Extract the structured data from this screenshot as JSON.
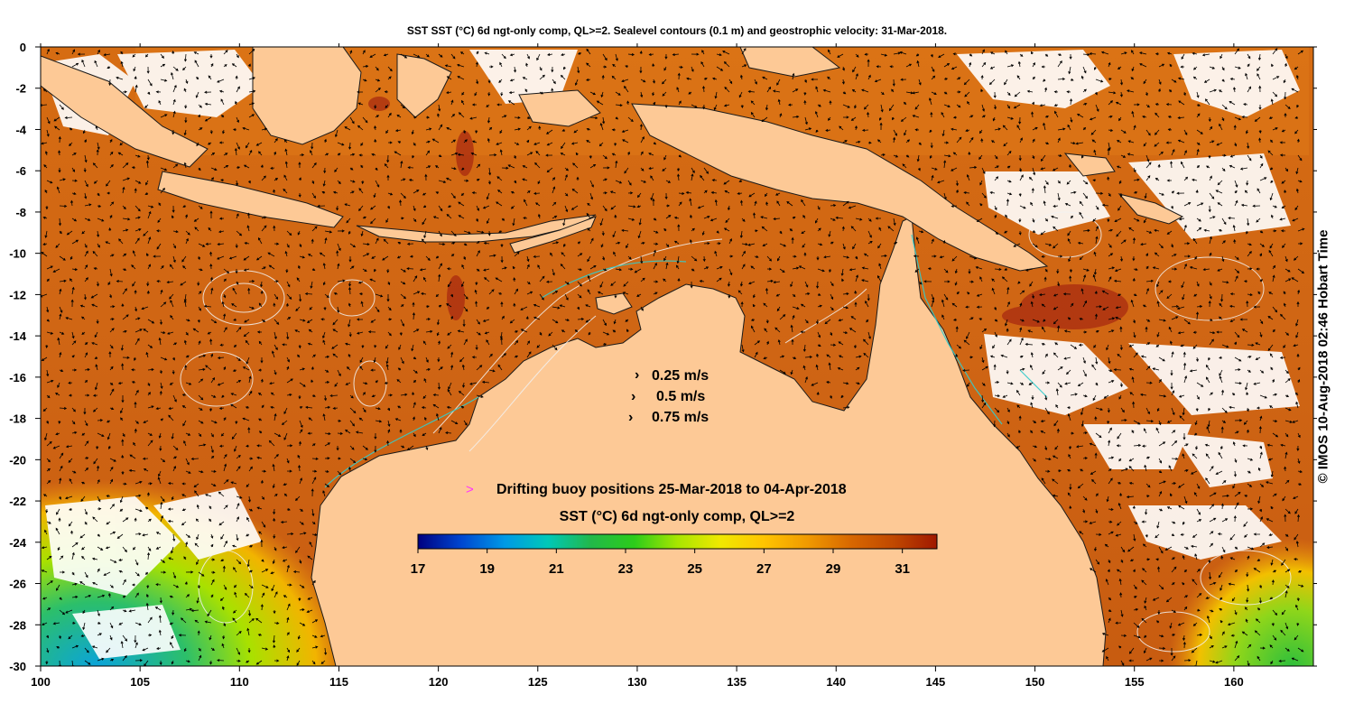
{
  "title": "SST SST (°C) 6d ngt-only comp, QL>=2. Sealevel contours (0.1 m) and geostrophic velocity: 31-Mar-2018.",
  "stamp": "© IMOS 10-Aug-2018 02:46 Hobart Time",
  "x_axis": {
    "ticks": [
      "100",
      "105",
      "110",
      "115",
      "120",
      "125",
      "130",
      "135",
      "140",
      "145",
      "150",
      "155",
      "160"
    ],
    "range": [
      100,
      164
    ]
  },
  "y_axis": {
    "ticks": [
      "0",
      "-2",
      "-4",
      "-6",
      "-8",
      "-10",
      "-12",
      "-14",
      "-16",
      "-18",
      "-20",
      "-22",
      "-24",
      "-26",
      "-28",
      "-30"
    ],
    "range": [
      -30,
      0
    ]
  },
  "velocity_legend": [
    {
      "label": "0.25 m/s"
    },
    {
      "label": "0.5 m/s"
    },
    {
      "label": "0.75 m/s"
    }
  ],
  "buoy_legend": {
    "symbol": ">",
    "label": "Drifting buoy positions 25-Mar-2018 to 04-Apr-2018",
    "color": "#ff33ff"
  },
  "colorbar": {
    "title": "SST (°C) 6d ngt-only comp, QL>=2",
    "range": [
      17,
      32
    ],
    "ticks": [
      "17",
      "19",
      "21",
      "23",
      "25",
      "27",
      "29",
      "31"
    ],
    "stops": [
      "#000080",
      "#0046d0",
      "#0099e6",
      "#00c8b8",
      "#22b84a",
      "#2ccc1a",
      "#a8e600",
      "#f0e800",
      "#ffc400",
      "#f09a00",
      "#d86800",
      "#c04800",
      "#a01800"
    ]
  },
  "colors": {
    "land": "#fdc996",
    "ocean_warm": "#d8761e",
    "ocean_hot": "#c85a10",
    "cloud": "#ffffff",
    "coast": "#1a1a1a",
    "contour": "#f2f2f2",
    "reef": "#33cccc"
  }
}
